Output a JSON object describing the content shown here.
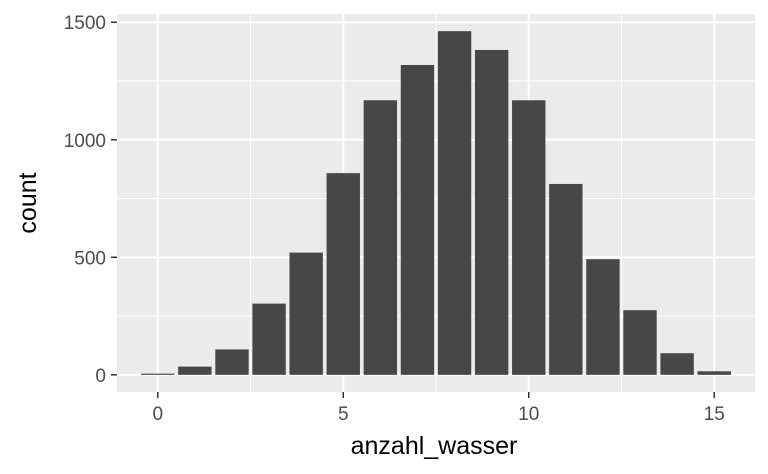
{
  "chart_data": {
    "type": "bar",
    "x": [
      0,
      1,
      2,
      3,
      4,
      5,
      6,
      7,
      8,
      9,
      10,
      11,
      12,
      13,
      14,
      15
    ],
    "values": [
      5,
      35,
      108,
      303,
      520,
      858,
      1168,
      1318,
      1462,
      1382,
      1168,
      812,
      492,
      275,
      92,
      15
    ],
    "xlabel": "anzahl_wasser",
    "ylabel": "count",
    "xlim": [
      -1.1,
      16.1
    ],
    "ylim": [
      -73,
      1535
    ],
    "x_ticks": [
      0,
      5,
      10,
      15
    ],
    "y_ticks": [
      0,
      500,
      1000,
      1500
    ],
    "grid": true,
    "colors": {
      "panel": "#ebebeb",
      "grid": "#ffffff",
      "bar": "#474747",
      "tick": "#333333"
    }
  }
}
